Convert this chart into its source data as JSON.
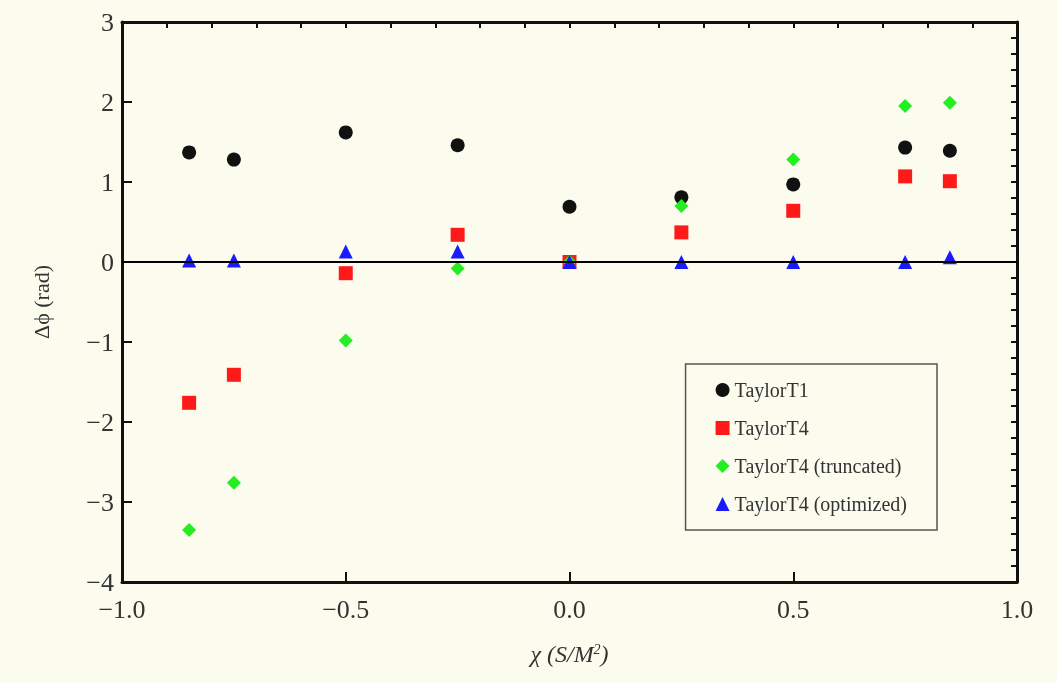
{
  "chart_data": {
    "type": "scatter",
    "xlabel": "χ (S/M$^{2}$)",
    "ylabel": "Δϕ (rad)",
    "x": [
      -0.85,
      -0.75,
      -0.5,
      -0.25,
      0,
      0.25,
      0.5,
      0.75,
      0.85
    ],
    "series": [
      {
        "name": "TaylorT1",
        "color": "#111111",
        "marker": "circle",
        "values": [
          1.37,
          1.28,
          1.62,
          1.46,
          0.69,
          0.81,
          0.97,
          1.43,
          1.39
        ]
      },
      {
        "name": "TaylorT4",
        "color": "#ff1a1a",
        "marker": "square",
        "values": [
          -1.76,
          -1.41,
          -0.14,
          0.34,
          0,
          0.37,
          0.64,
          1.07,
          1.01
        ]
      },
      {
        "name": "TaylorT4 (truncated)",
        "color": "#22ee22",
        "marker": "diamond",
        "values": [
          -3.35,
          -2.76,
          -0.98,
          -0.08,
          0,
          0.7,
          1.28,
          1.95,
          1.99
        ]
      },
      {
        "name": "TaylorT4 (optimized)",
        "color": "#1a1aff",
        "marker": "triangle",
        "values": [
          0.02,
          0.02,
          0.13,
          0.13,
          0,
          0,
          0,
          0,
          0.06
        ]
      }
    ],
    "xlim": [
      -1,
      1
    ],
    "xticks": [
      {
        "value": -1,
        "label": "−1.0"
      },
      {
        "value": -0.5,
        "label": "−0.5"
      },
      {
        "value": 0,
        "label": "0.0"
      },
      {
        "value": 0.5,
        "label": "0.5"
      },
      {
        "value": 1,
        "label": "1.0"
      }
    ],
    "ylim": [
      -4,
      3
    ],
    "yticks": [
      {
        "value": -4,
        "label": "−4"
      },
      {
        "value": -3,
        "label": "−3"
      },
      {
        "value": -2,
        "label": "−2"
      },
      {
        "value": -1,
        "label": "−1"
      },
      0,
      1,
      2,
      3
    ],
    "ref_lines": [
      {
        "axis": "y",
        "value": 0,
        "label": null,
        "color": "#000000"
      }
    ],
    "grid": false,
    "legend": "bottom right"
  }
}
